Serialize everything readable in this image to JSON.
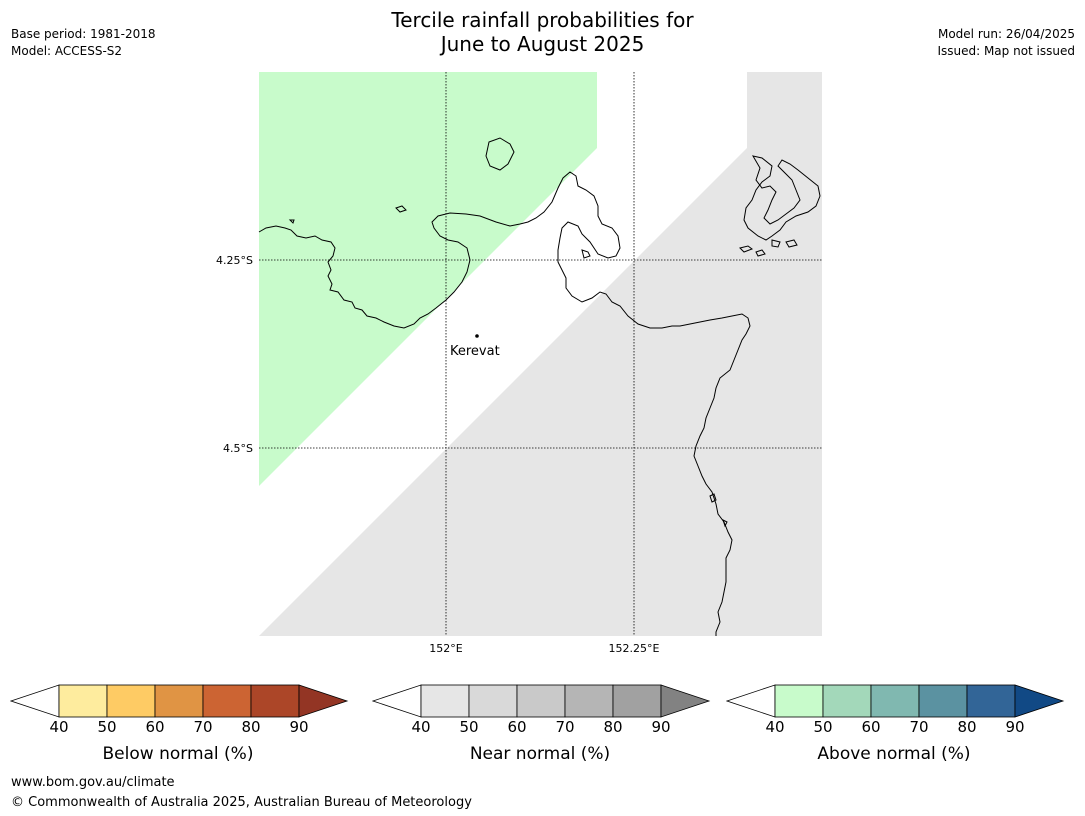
{
  "header": {
    "title_line1": "Tercile rainfall probabilities for",
    "title_line2": "June to August 2025",
    "base_period": "Base period: 1981-2018",
    "model": "Model: ACCESS-S2",
    "model_run": "Model run: 26/04/2025",
    "issued": "Issued: Map not issued"
  },
  "map": {
    "lat_labels": [
      "4.25°S",
      "4.5°S"
    ],
    "lon_labels": [
      "152°E",
      "152.25°E"
    ],
    "place": "Kerevat",
    "regions": [
      {
        "category": "above_normal",
        "class": "40-50",
        "color": "#c8fbcb"
      },
      {
        "category": "near_normal",
        "class": "40-50",
        "color": "#e6e6e6"
      }
    ]
  },
  "colorbars": [
    {
      "label": "Below normal (%)",
      "ticks": [
        "40",
        "50",
        "60",
        "70",
        "80",
        "90"
      ],
      "low": "#ffffff",
      "colors": [
        "#feec9e",
        "#fecb64",
        "#e09444",
        "#cc6433",
        "#ac4628"
      ],
      "high": "#933524"
    },
    {
      "label": "Near normal (%)",
      "ticks": [
        "40",
        "50",
        "60",
        "70",
        "80",
        "90"
      ],
      "low": "#ffffff",
      "colors": [
        "#e6e6e6",
        "#d9d9d9",
        "#c9c9c9",
        "#b5b5b5",
        "#a1a1a1"
      ],
      "high": "#828282"
    },
    {
      "label": "Above normal (%)",
      "ticks": [
        "40",
        "50",
        "60",
        "70",
        "80",
        "90"
      ],
      "low": "#ffffff",
      "colors": [
        "#c8fbcb",
        "#a3d8ba",
        "#80b8b0",
        "#5b92a1",
        "#326597"
      ],
      "high": "#114985"
    }
  ],
  "footer": {
    "url": "www.bom.gov.au/climate",
    "copyright": "© Commonwealth of Australia 2025, Australian Bureau of Meteorology"
  }
}
